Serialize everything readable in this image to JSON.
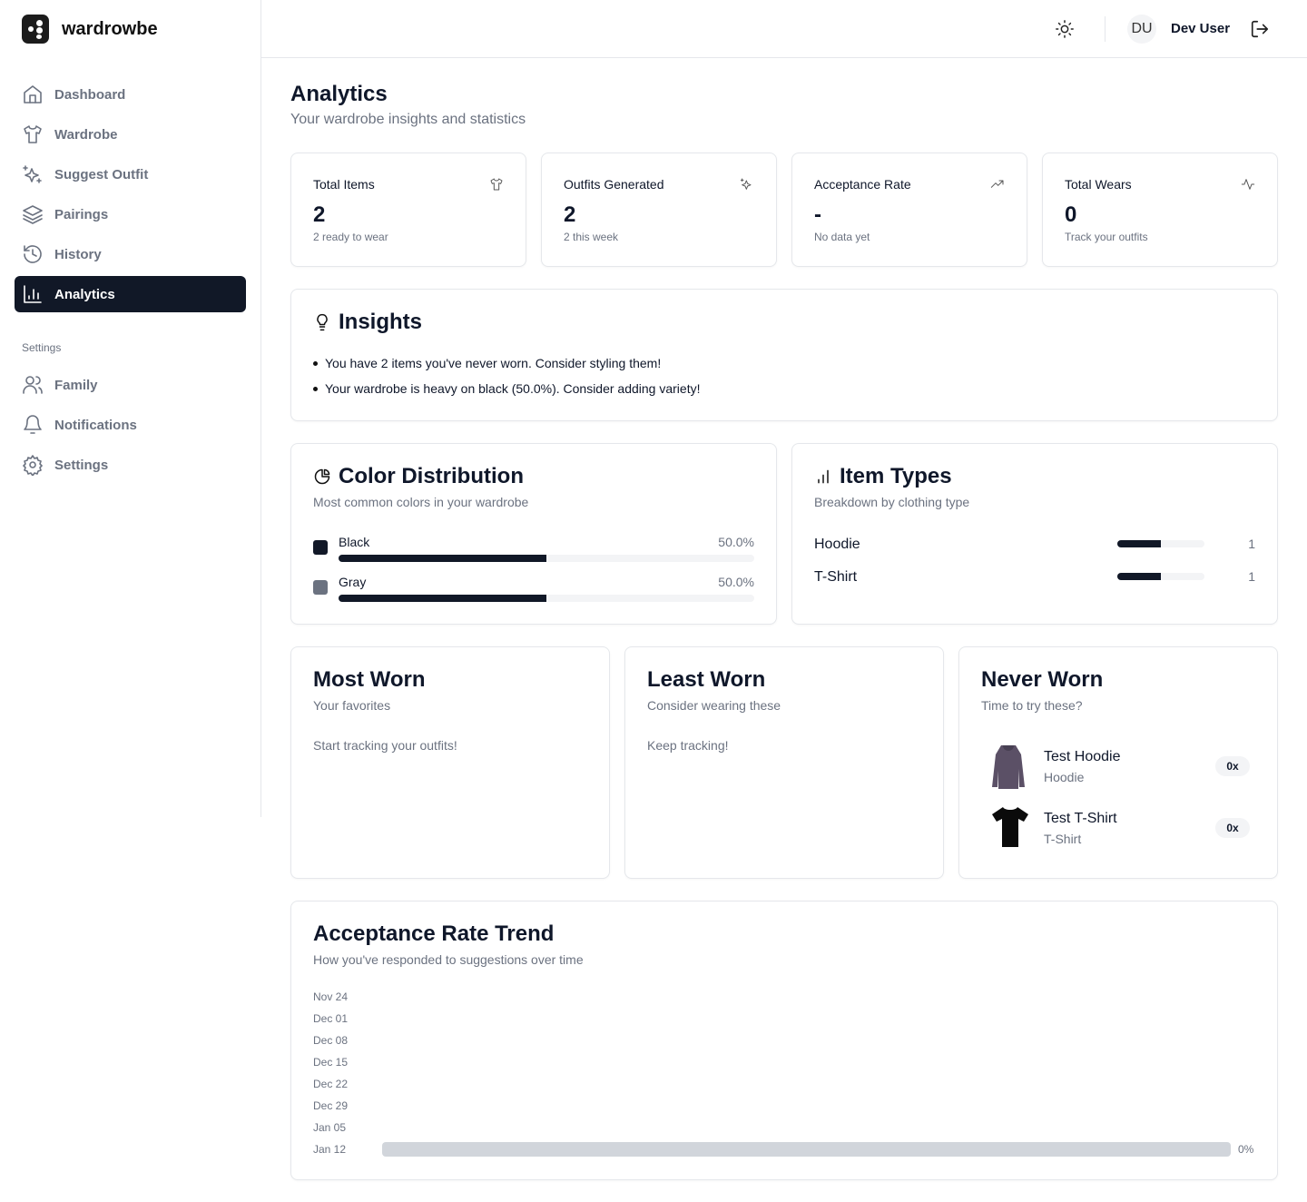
{
  "app": {
    "name": "wardrowbe"
  },
  "sidebar": {
    "items": [
      {
        "label": "Dashboard",
        "icon": "home-icon"
      },
      {
        "label": "Wardrobe",
        "icon": "shirt-icon"
      },
      {
        "label": "Suggest Outfit",
        "icon": "sparkles-icon"
      },
      {
        "label": "Pairings",
        "icon": "layers-icon"
      },
      {
        "label": "History",
        "icon": "history-icon"
      },
      {
        "label": "Analytics",
        "icon": "bar-chart-icon",
        "active": true
      }
    ],
    "settings_label": "Settings",
    "settings_items": [
      {
        "label": "Family",
        "icon": "users-icon"
      },
      {
        "label": "Notifications",
        "icon": "bell-icon"
      },
      {
        "label": "Settings",
        "icon": "gear-icon"
      }
    ]
  },
  "header": {
    "avatar": "DU",
    "user": "Dev User"
  },
  "page": {
    "title": "Analytics",
    "subtitle": "Your wardrobe insights and statistics"
  },
  "stats": [
    {
      "title": "Total Items",
      "value": "2",
      "sub": "2 ready to wear"
    },
    {
      "title": "Outfits Generated",
      "value": "2",
      "sub": "2 this week"
    },
    {
      "title": "Acceptance Rate",
      "value": "-",
      "sub": "No data yet"
    },
    {
      "title": "Total Wears",
      "value": "0",
      "sub": "Track your outfits"
    }
  ],
  "insights": {
    "title": "Insights",
    "items": [
      "You have 2 items you've never worn. Consider styling them!",
      "Your wardrobe is heavy on black (50.0%). Consider adding variety!"
    ]
  },
  "colors": {
    "title": "Color Distribution",
    "subtitle": "Most common colors in your wardrobe",
    "items": [
      {
        "name": "Black",
        "pct": "50.0%",
        "value": 50,
        "swatch": "#111827"
      },
      {
        "name": "Gray",
        "pct": "50.0%",
        "value": 50,
        "swatch": "#6b7280"
      }
    ]
  },
  "types": {
    "title": "Item Types",
    "subtitle": "Breakdown by clothing type",
    "items": [
      {
        "name": "Hoodie",
        "count": "1",
        "fraction": 0.5
      },
      {
        "name": "T-Shirt",
        "count": "1",
        "fraction": 0.5
      }
    ]
  },
  "most_worn": {
    "title": "Most Worn",
    "subtitle": "Your favorites",
    "empty": "Start tracking your outfits!"
  },
  "least_worn": {
    "title": "Least Worn",
    "subtitle": "Consider wearing these",
    "empty": "Keep tracking!"
  },
  "never_worn": {
    "title": "Never Worn",
    "subtitle": "Time to try these?",
    "items": [
      {
        "name": "Test Hoodie",
        "type": "Hoodie",
        "count": "0x"
      },
      {
        "name": "Test T-Shirt",
        "type": "T-Shirt",
        "count": "0x"
      }
    ]
  },
  "trend": {
    "title": "Acceptance Rate Trend",
    "subtitle": "How you've responded to suggestions over time"
  },
  "chart_data": {
    "type": "bar",
    "orientation": "horizontal",
    "categories": [
      "Nov 24",
      "Dec 01",
      "Dec 08",
      "Dec 15",
      "Dec 22",
      "Dec 29",
      "Jan 05",
      "Jan 12"
    ],
    "values": [
      null,
      null,
      null,
      null,
      null,
      null,
      null,
      0
    ],
    "labels": [
      "",
      "",
      "",
      "",
      "",
      "",
      "",
      "0%"
    ]
  }
}
